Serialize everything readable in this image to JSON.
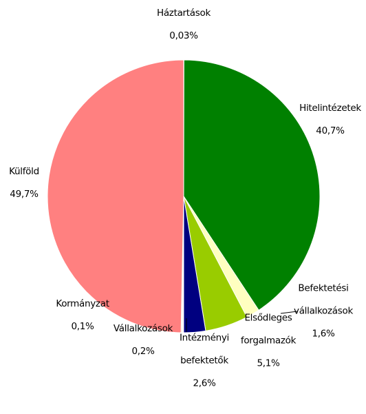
{
  "chart_data": {
    "type": "pie",
    "categories": [
      "Háztartások",
      "Hitelintézetek",
      "Befektetési vállalkozások",
      "Elsődleges forgalmazók",
      "Intézményi befektetők",
      "Vállalkozások",
      "Kormányzat",
      "Külföld"
    ],
    "values": [
      0.03,
      40.7,
      1.6,
      5.1,
      2.6,
      0.2,
      0.1,
      49.7
    ],
    "value_labels": [
      "0,03%",
      "40,7%",
      "1,6%",
      "5,1%",
      "2,6%",
      "0,2%",
      "0,1%",
      "49,7%"
    ],
    "colors": [
      "#c0c0c0",
      "#008000",
      "#ffffc0",
      "#99cc00",
      "#000080",
      "#ffffff",
      "#ff9900",
      "#ff8080"
    ]
  }
}
